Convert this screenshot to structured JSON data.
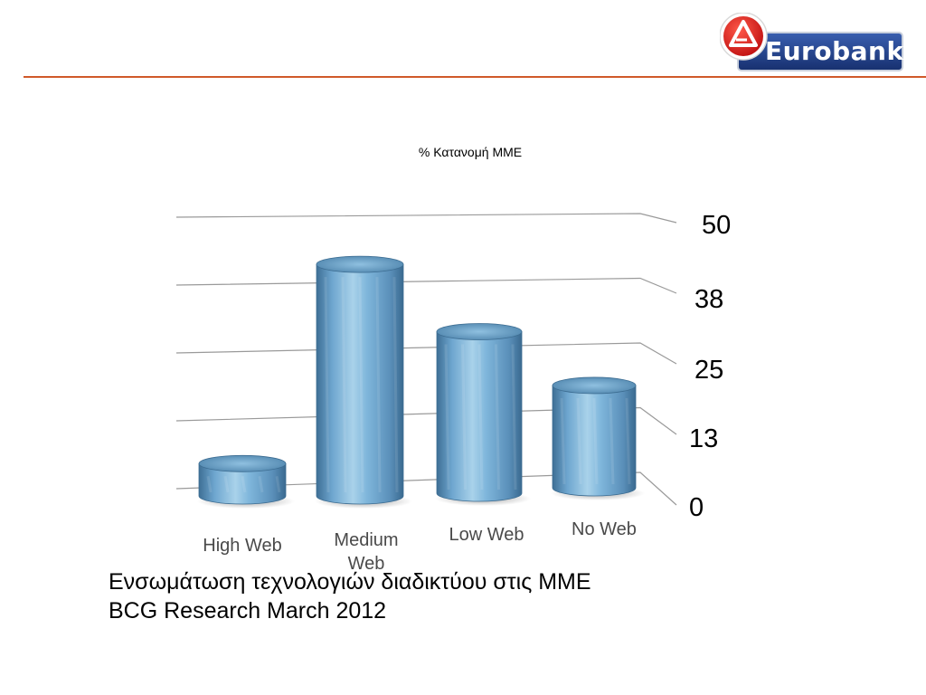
{
  "brand": {
    "name": "Eurobank",
    "accent": "#e2231a",
    "navy": "#1f3f8a",
    "rule_color": "#d05a2a"
  },
  "chart_data": {
    "type": "bar",
    "title": "% Κατανομή ΜΜΕ",
    "categories": [
      "High Web",
      "Medium Web",
      "Low Web",
      "No Web"
    ],
    "values": [
      6,
      43,
      30,
      19
    ],
    "ylim": [
      0,
      50
    ],
    "yticks": [
      "0",
      "13",
      "25",
      "38",
      "50"
    ],
    "style": "3d-cylinder",
    "bar_color": "#6fa7cc",
    "grid": true
  },
  "caption": {
    "line1": "Ενσωμάτωση τεχνολογιών διαδικτύου στις ΜΜΕ",
    "line2": "BCG Research March 2012"
  }
}
